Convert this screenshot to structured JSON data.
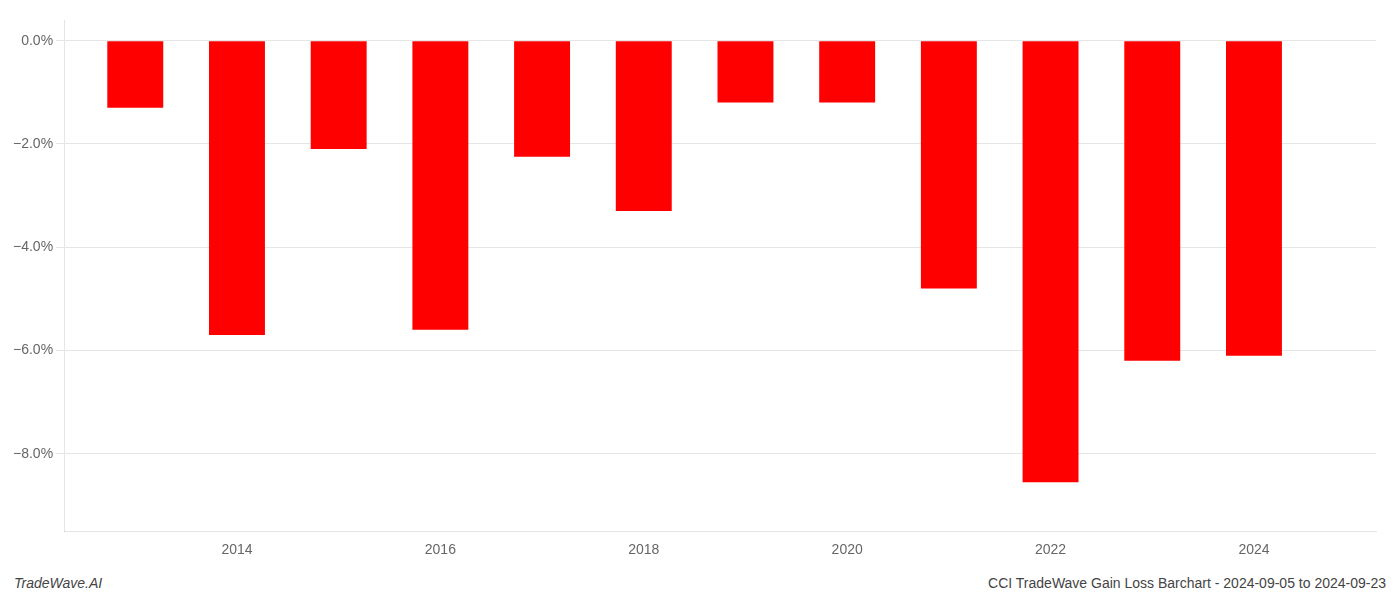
{
  "chart_data": {
    "type": "bar",
    "x": [
      2013,
      2014,
      2015,
      2016,
      2017,
      2018,
      2019,
      2020,
      2021,
      2022,
      2023,
      2024
    ],
    "values": [
      -1.3,
      -5.7,
      -2.1,
      -5.6,
      -2.25,
      -3.3,
      -1.2,
      -1.2,
      -4.8,
      -8.55,
      -6.2,
      -6.1
    ],
    "color": "#ff0000",
    "xlim": [
      2012.3,
      2025.2
    ],
    "xticks": [
      2014,
      2016,
      2018,
      2020,
      2022,
      2024
    ],
    "ylim": [
      -9.5,
      0.4
    ],
    "yticks": [
      {
        "value": 0.0,
        "label": "0.0%"
      },
      {
        "value": -2.0,
        "label": "−2.0%"
      },
      {
        "value": -4.0,
        "label": "−4.0%"
      },
      {
        "value": -6.0,
        "label": "−6.0%"
      },
      {
        "value": -8.0,
        "label": "−8.0%"
      }
    ],
    "grid": "y",
    "annotations": [
      "TradeWave.AI",
      "CCI TradeWave Gain Loss Barchart - 2024-09-05 to 2024-09-23"
    ]
  }
}
